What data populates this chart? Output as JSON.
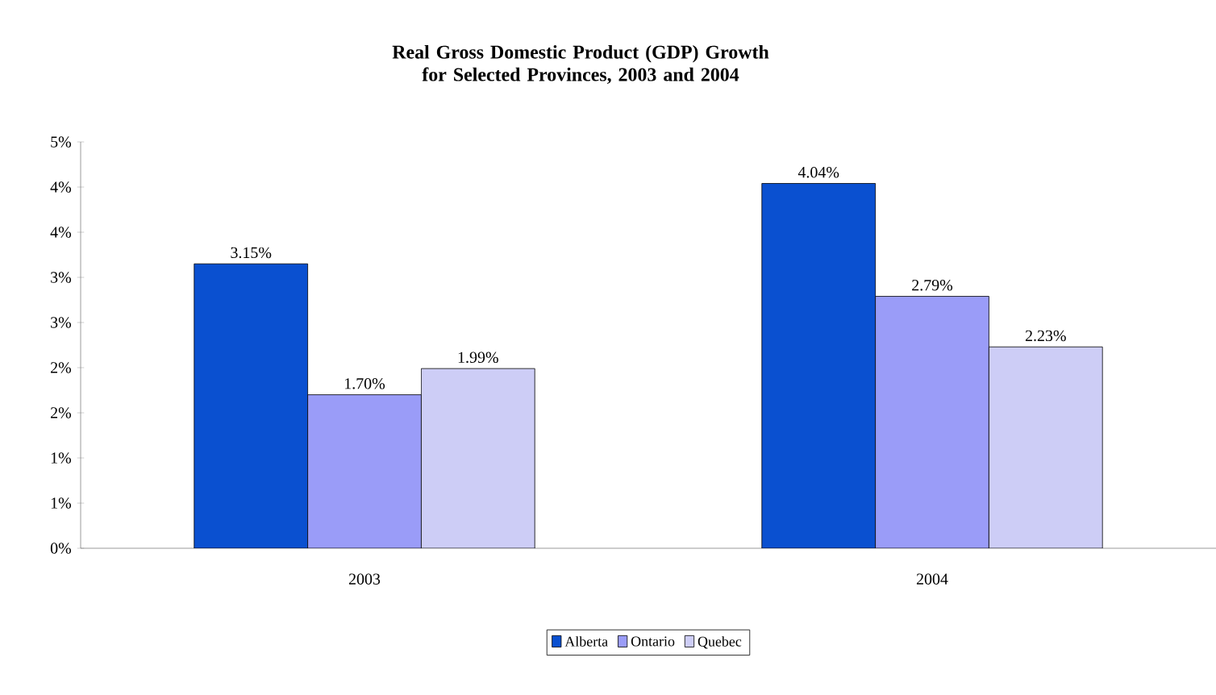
{
  "chart_data": {
    "type": "bar",
    "title": "Real Gross Domestic Product (GDP) Growth\nfor Selected Provinces, 2003 and 2004",
    "categories": [
      "2003",
      "2004"
    ],
    "series": [
      {
        "name": "Alberta",
        "color": "#0a50d0",
        "values": [
          3.15,
          4.04
        ],
        "value_labels": [
          "3.15%",
          "4.04%"
        ]
      },
      {
        "name": "Ontario",
        "color": "#9a9cf8",
        "values": [
          1.7,
          2.79
        ],
        "value_labels": [
          "1.70%",
          "2.79%"
        ]
      },
      {
        "name": "Quebec",
        "color": "#cdcdf6",
        "values": [
          1.99,
          2.23
        ],
        "value_labels": [
          "1.99%",
          "2.23%"
        ]
      }
    ],
    "ylim": [
      0,
      4.5
    ],
    "yticks": [
      {
        "value": 0,
        "label": "0%"
      },
      {
        "value": 0.5,
        "label": "1%"
      },
      {
        "value": 1,
        "label": "1%"
      },
      {
        "value": 1.5,
        "label": "2%"
      },
      {
        "value": 2,
        "label": "2%"
      },
      {
        "value": 2.5,
        "label": "3%"
      },
      {
        "value": 3,
        "label": "3%"
      },
      {
        "value": 3.5,
        "label": "4%"
      },
      {
        "value": 4,
        "label": "4%"
      },
      {
        "value": 4.5,
        "label": "5%"
      }
    ],
    "grid": false,
    "legend": "bottom"
  }
}
